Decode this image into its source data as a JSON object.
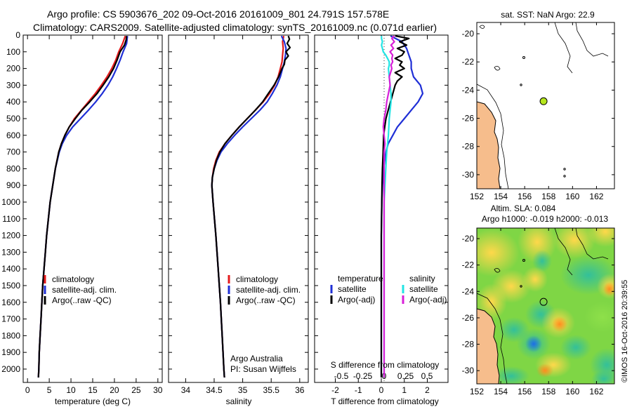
{
  "header": {
    "line1": "Argo profile: CS 5903676_202 09-Oct-2016 20161009_801 24.791S 157.578E",
    "line2": "Climatology: CARS2009. Satellite-adjusted climatology: synTS_20161009.nc (0.071d earlier)"
  },
  "colors": {
    "climatology": "#e41a1c",
    "satellite": "#1f2fd6",
    "argo": "#000000",
    "salinity_sat": "#22e4e4",
    "salinity_argo": "#d81fd8",
    "land": "#f6bd8c"
  },
  "credits": {
    "institution": "Argo Australia",
    "pi": "PI: Susan Wijffels",
    "stamp": "©IMOS 16-Oct-2016 20:39:55"
  },
  "chart_data": [
    {
      "type": "line",
      "panel": "temperature",
      "xlabel": "temperature (deg C)",
      "ylabel": "",
      "xlim": [
        -1,
        31
      ],
      "ylim": [
        2080,
        0
      ],
      "xticks": [
        "0",
        "5",
        "10",
        "15",
        "20",
        "25",
        "30"
      ],
      "yticks": [
        "0",
        "100",
        "200",
        "300",
        "400",
        "500",
        "600",
        "700",
        "800",
        "900",
        "1000",
        "1100",
        "1200",
        "1300",
        "1400",
        "1500",
        "1600",
        "1700",
        "1800",
        "1900",
        "2000"
      ],
      "legend": [
        "climatology",
        "satellite-adj. clim.",
        "Argo(..raw -QC)"
      ],
      "series": [
        {
          "name": "climatology",
          "color": "#e41a1c",
          "depth": [
            5,
            50,
            100,
            150,
            200,
            250,
            300,
            350,
            400,
            450,
            500,
            550,
            600,
            650,
            700,
            800,
            900,
            1000,
            1100,
            1200,
            1300,
            1400,
            1500,
            1600,
            1700,
            1800,
            1900,
            2000,
            2050
          ],
          "values": [
            22.5,
            21.9,
            21.0,
            20.3,
            19.4,
            18.3,
            17.0,
            15.6,
            14.0,
            12.4,
            10.8,
            9.6,
            8.6,
            7.8,
            7.2,
            6.4,
            5.8,
            5.2,
            4.8,
            4.4,
            4.1,
            3.8,
            3.5,
            3.3,
            3.1,
            2.9,
            2.7,
            2.6,
            2.5
          ]
        },
        {
          "name": "satellite-adj. clim.",
          "color": "#1f2fd6",
          "depth": [
            5,
            50,
            100,
            150,
            200,
            250,
            300,
            350,
            400,
            450,
            500,
            550,
            600,
            650,
            700,
            800,
            900,
            1000,
            1100,
            1200,
            1300,
            1400,
            1500,
            1600,
            1700,
            1800,
            1900,
            2000,
            2050
          ],
          "values": [
            23.0,
            22.8,
            22.0,
            21.3,
            20.5,
            19.6,
            18.5,
            17.2,
            15.7,
            14.0,
            12.2,
            10.4,
            9.0,
            8.0,
            7.3,
            6.4,
            5.8,
            5.2,
            4.8,
            4.4,
            4.1,
            3.8,
            3.5,
            3.3,
            3.1,
            2.9,
            2.7,
            2.6,
            2.5
          ]
        },
        {
          "name": "Argo(..raw -QC)",
          "color": "#000000",
          "depth": [
            5,
            30,
            60,
            100,
            150,
            200,
            250,
            300,
            350,
            400,
            450,
            500,
            550,
            600,
            650,
            700,
            800,
            900,
            1000,
            1100,
            1200,
            1300,
            1400,
            1500,
            1600,
            1700,
            1800,
            1900,
            2000,
            2050
          ],
          "values": [
            22.8,
            22.7,
            22.3,
            21.3,
            20.6,
            19.8,
            18.7,
            17.4,
            16.0,
            14.3,
            12.5,
            11.0,
            9.6,
            8.6,
            7.8,
            7.2,
            6.4,
            5.8,
            5.2,
            4.8,
            4.4,
            4.1,
            3.8,
            3.5,
            3.3,
            3.1,
            2.9,
            2.7,
            2.6,
            2.5
          ]
        }
      ]
    },
    {
      "type": "line",
      "panel": "salinity",
      "xlabel": "salinity",
      "ylabel": "",
      "xlim": [
        33.7,
        36.15
      ],
      "ylim": [
        2080,
        0
      ],
      "xticks": [
        "34",
        "34.5",
        "35",
        "35.5",
        "36"
      ],
      "legend": [
        "climatology",
        "satellite-adj. clim.",
        "Argo(..raw -QC)"
      ],
      "series": [
        {
          "name": "climatology",
          "color": "#e41a1c",
          "depth": [
            5,
            40,
            80,
            120,
            160,
            200,
            250,
            300,
            350,
            400,
            450,
            500,
            550,
            600,
            650,
            700,
            750,
            800,
            850,
            900,
            1000,
            1200,
            1400,
            1600,
            1800,
            2000,
            2050
          ],
          "values": [
            35.72,
            35.7,
            35.71,
            35.7,
            35.69,
            35.66,
            35.62,
            35.56,
            35.47,
            35.36,
            35.22,
            35.08,
            34.94,
            34.81,
            34.69,
            34.59,
            34.53,
            34.49,
            34.47,
            34.46,
            34.48,
            34.53,
            34.57,
            34.61,
            34.64,
            34.67,
            34.68
          ]
        },
        {
          "name": "satellite-adj. clim.",
          "color": "#1f2fd6",
          "depth": [
            5,
            40,
            80,
            120,
            160,
            200,
            250,
            300,
            350,
            400,
            450,
            500,
            550,
            600,
            650,
            700,
            750,
            800,
            850,
            900,
            1000,
            1200,
            1400,
            1600,
            1800,
            2000,
            2050
          ],
          "values": [
            35.68,
            35.73,
            35.76,
            35.75,
            35.73,
            35.7,
            35.66,
            35.6,
            35.52,
            35.43,
            35.3,
            35.15,
            35.0,
            34.86,
            34.73,
            34.62,
            34.55,
            34.5,
            34.47,
            34.46,
            34.48,
            34.53,
            34.57,
            34.61,
            34.64,
            34.67,
            34.68
          ]
        },
        {
          "name": "Argo(..raw -QC)",
          "color": "#000000",
          "depth": [
            5,
            25,
            50,
            75,
            100,
            125,
            150,
            175,
            200,
            250,
            300,
            350,
            400,
            450,
            500,
            550,
            600,
            650,
            700,
            750,
            800,
            850,
            900,
            1000,
            1200,
            1400,
            1600,
            1800,
            2000,
            2050
          ],
          "values": [
            35.8,
            35.82,
            35.78,
            35.83,
            35.76,
            35.8,
            35.74,
            35.73,
            35.69,
            35.63,
            35.55,
            35.45,
            35.35,
            35.22,
            35.08,
            34.94,
            34.81,
            34.69,
            34.6,
            34.54,
            34.5,
            34.47,
            34.46,
            34.48,
            34.53,
            34.57,
            34.61,
            34.64,
            34.67,
            34.68
          ]
        }
      ]
    },
    {
      "type": "line",
      "panel": "difference",
      "xlabel": "T difference from climatology",
      "xlabel_top": "S difference from climatology",
      "ylabel": "",
      "xlim": [
        -2.9,
        2.9
      ],
      "ylim": [
        2080,
        0
      ],
      "xticks": [
        "-2",
        "-1",
        "0",
        "1",
        "2"
      ],
      "xticks_top": [
        "-0.5",
        "-0.25",
        "0",
        "0.25",
        "0.5"
      ],
      "legend_headers": [
        "temperature",
        "salinity"
      ],
      "legend": [
        "satellite",
        "Argo(-adj)",
        "satellite",
        "Argo(-adj)"
      ],
      "series": [
        {
          "name": "satellite",
          "quantity": "temperature",
          "color": "#1f2fd6",
          "depth": [
            5,
            40,
            80,
            120,
            160,
            200,
            250,
            300,
            350,
            400,
            450,
            500,
            550,
            600,
            650,
            700,
            750,
            800,
            900,
            1000,
            1200,
            1400,
            1600,
            1800,
            2000,
            2050
          ],
          "values": [
            0.4,
            0.9,
            1.1,
            1.2,
            1.3,
            1.3,
            1.4,
            1.7,
            1.8,
            1.6,
            1.3,
            1.0,
            0.7,
            0.5,
            0.3,
            0.2,
            0.15,
            0.1,
            0.05,
            0.02,
            0.0,
            0.0,
            0.0,
            0.0,
            0.0,
            0.0
          ]
        },
        {
          "name": "Argo(-adj)",
          "quantity": "temperature",
          "color": "#000000",
          "depth": [
            5,
            20,
            40,
            60,
            80,
            100,
            120,
            140,
            160,
            180,
            200,
            225,
            250,
            275,
            300,
            350,
            400,
            450,
            500,
            550,
            600,
            700,
            800,
            900,
            1000,
            1200,
            1400,
            1600,
            1800,
            2000,
            2050
          ],
          "values": [
            0.6,
            1.2,
            0.8,
            1.1,
            0.7,
            1.0,
            0.9,
            0.6,
            0.9,
            0.8,
            1.0,
            0.6,
            0.9,
            0.7,
            0.6,
            0.5,
            0.4,
            0.3,
            0.2,
            0.15,
            0.1,
            0.08,
            0.05,
            0.03,
            0.02,
            0.0,
            0.0,
            0.0,
            0.0,
            0.0,
            0.0
          ]
        },
        {
          "name": "satellite",
          "quantity": "salinity",
          "color": "#22e4e4",
          "depth": [
            5,
            20,
            40,
            60,
            80,
            100,
            120,
            140,
            160,
            180,
            200,
            250,
            300,
            350,
            400,
            450,
            500,
            600,
            700,
            800,
            900,
            1000,
            1200,
            1400,
            1600,
            1800,
            2000,
            2050
          ],
          "values": [
            -0.03,
            -0.03,
            -0.02,
            -0.03,
            -0.02,
            -0.01,
            0.02,
            0.04,
            0.06,
            0.06,
            0.05,
            0.06,
            0.07,
            0.08,
            0.08,
            0.07,
            0.06,
            0.05,
            0.03,
            0.02,
            0.01,
            0.0,
            0.0,
            0.0,
            0.0,
            0.0,
            0.0,
            0.0
          ]
        },
        {
          "name": "Argo(-adj)",
          "quantity": "salinity",
          "color": "#d81fd8",
          "depth": [
            5,
            20,
            40,
            60,
            80,
            100,
            120,
            140,
            160,
            180,
            200,
            250,
            300,
            350,
            400,
            450,
            500,
            550,
            600,
            650,
            700,
            800,
            900,
            1000,
            1200,
            1400,
            1600,
            1800,
            2000,
            2050
          ],
          "values": [
            0.12,
            0.09,
            0.12,
            0.08,
            0.11,
            0.07,
            0.1,
            0.09,
            0.1,
            0.08,
            0.09,
            0.06,
            0.07,
            0.05,
            0.03,
            0.02,
            0.0,
            -0.01,
            0.0,
            0.01,
            0.0,
            0.0,
            0.0,
            0.0,
            0.0,
            0.0,
            0.0,
            0.0,
            0.0,
            0.0
          ]
        }
      ]
    },
    {
      "type": "map",
      "panel": "sst_map",
      "title": "sat. SST: NaN  Argo: 22.9",
      "xlim": [
        152,
        163.5
      ],
      "ylim": [
        -31,
        -19.2
      ],
      "xticks": [
        "152",
        "154",
        "156",
        "158",
        "160",
        "162"
      ],
      "yticks": [
        "-20",
        "-22",
        "-24",
        "-26",
        "-28",
        "-30"
      ],
      "marker": {
        "lon": 157.578,
        "lat": -24.791,
        "color": "#b5e61d"
      }
    },
    {
      "type": "heatmap",
      "panel": "sla_map",
      "title_line1": "Altim. SLA: 0.084",
      "title_line2": "Argo h1000: -0.019 h2000: -0.013",
      "xlim": [
        152,
        163.5
      ],
      "ylim": [
        -31,
        -19.2
      ],
      "xticks": [
        "152",
        "154",
        "156",
        "158",
        "160",
        "162"
      ],
      "yticks": [
        "-20",
        "-22",
        "-24",
        "-26",
        "-28",
        "-30"
      ],
      "marker": {
        "lon": 157.578,
        "lat": -24.791
      }
    }
  ]
}
